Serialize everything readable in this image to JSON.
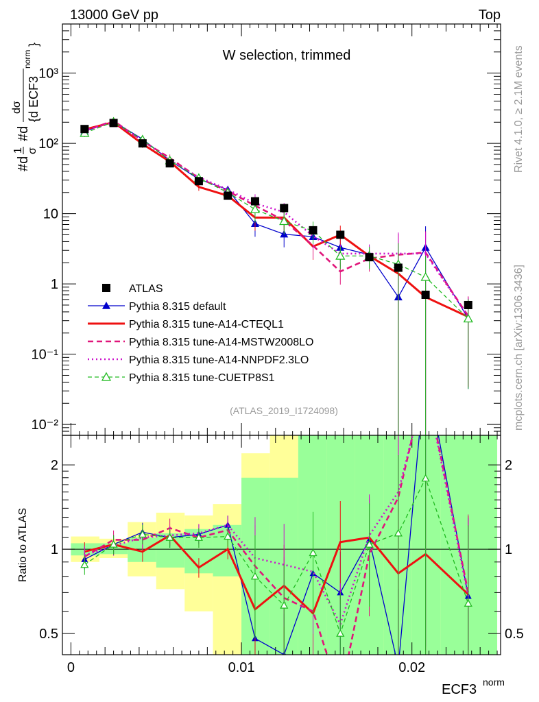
{
  "header": {
    "energy": "13000 GeV pp",
    "label": "Top"
  },
  "side_labels": {
    "rivet": "Rivet 4.1.0, ≥ 2.1M events",
    "site": "mcplots.cern.ch [arXiv:1306.3436]"
  },
  "chart_data": [
    {
      "type": "line",
      "panel": "main",
      "title": "W selection, trimmed",
      "annotation": "(ATLAS_2019_I1724098)",
      "ylabel": "#d1/σ #dσ/{d ECF3^norm}",
      "yscale": "log",
      "ylim": [
        0.007,
        5000
      ],
      "xlim": [
        -0.0005,
        0.0252
      ],
      "y_ticks": [
        {
          "value": 0.01,
          "label": "10⁻²"
        },
        {
          "value": 0.1,
          "label": "10⁻¹"
        },
        {
          "value": 1,
          "label": "1"
        },
        {
          "value": 10,
          "label": "10"
        },
        {
          "value": 100,
          "label": "10²"
        },
        {
          "value": 1000,
          "label": "10³"
        }
      ],
      "x": [
        0.0008,
        0.0025,
        0.0042,
        0.0058,
        0.0075,
        0.0092,
        0.0108,
        0.0125,
        0.0142,
        0.0158,
        0.0175,
        0.0192,
        0.0208,
        0.0233
      ],
      "bin_edges": [
        0,
        0.00167,
        0.00333,
        0.005,
        0.00667,
        0.00833,
        0.01,
        0.01167,
        0.01333,
        0.015,
        0.01667,
        0.01833,
        0.02,
        0.02167,
        0.025
      ],
      "series": [
        {
          "name": "ATLAS",
          "color": "#000000",
          "style": "square",
          "values": [
            160,
            195,
            100,
            52,
            29,
            18,
            15,
            12,
            5.8,
            5.0,
            2.4,
            1.7,
            0.7,
            0.5
          ]
        },
        {
          "name": "Pythia 8.315 default",
          "color": "#0000cc",
          "style": "solid-triangle",
          "values": [
            148,
            205,
            115,
            57,
            31,
            22,
            7.2,
            5.1,
            4.7,
            3.3,
            2.6,
            0.65,
            3.3,
            0.32
          ]
        },
        {
          "name": "Pythia 8.315 tune-A14-CTEQL1",
          "color": "#ee1111",
          "style": "solid-thick",
          "values": [
            158,
            200,
            98,
            55,
            24,
            18,
            8.8,
            8.8,
            3.4,
            5.0,
            2.5,
            1.4,
            0.65,
            0.34
          ]
        },
        {
          "name": "Pythia 8.315 tune-A14-MSTW2008LO",
          "color": "#e0157a",
          "style": "dashed",
          "values": [
            150,
            210,
            108,
            62,
            32,
            21,
            13,
            8.0,
            3.5,
            1.5,
            2.3,
            2.6,
            2.8,
            0.35
          ]
        },
        {
          "name": "Pythia 8.315 tune-A14-NNPDF2.3LO",
          "color": "#cc11cc",
          "style": "dotted",
          "values": [
            152,
            200,
            110,
            58,
            33,
            22,
            14,
            10.5,
            4.8,
            2.7,
            2.7,
            2.7,
            2.7,
            0.34
          ]
        },
        {
          "name": "Pythia 8.315 tune-CUETP8S1",
          "color": "#22bb22",
          "style": "dashed-open-triangle",
          "values": [
            140,
            202,
            113,
            57,
            32,
            20,
            11.5,
            7.8,
            5.7,
            2.5,
            2.5,
            1.9,
            1.25,
            0.32
          ]
        }
      ]
    },
    {
      "type": "line",
      "panel": "ratio",
      "ylabel": "Ratio to ATLAS",
      "xlabel": "ECF3^norm",
      "yscale": "log",
      "ylim": [
        0.42,
        2.55
      ],
      "y_ticks": [
        {
          "value": 0.5,
          "label": "0.5"
        },
        {
          "value": 1,
          "label": "1"
        },
        {
          "value": 2,
          "label": "2"
        }
      ],
      "x_ticks": [
        {
          "value": 0,
          "label": "0"
        },
        {
          "value": 0.01,
          "label": "0.01"
        },
        {
          "value": 0.02,
          "label": "0.02"
        }
      ],
      "band_stat": {
        "color": "#99ff99",
        "low": [
          0.95,
          0.96,
          0.9,
          0.86,
          0.82,
          0.8,
          0.3,
          0.3,
          0.3,
          0.3,
          0.3,
          0.3,
          0.3,
          0.3
        ],
        "high": [
          1.05,
          1.05,
          1.1,
          1.14,
          1.18,
          1.22,
          1.8,
          1.8,
          3.0,
          3.0,
          3.0,
          3.0,
          3.0,
          3.0
        ]
      },
      "band_syst": {
        "color": "#ffff99",
        "low": [
          0.9,
          0.93,
          0.8,
          0.72,
          0.6,
          0.42,
          0.3,
          0.3,
          0.3,
          0.3,
          0.3,
          0.3,
          0.3,
          0.3
        ],
        "high": [
          1.11,
          1.09,
          1.25,
          1.35,
          1.32,
          1.45,
          2.2,
          3.0,
          2.4,
          3.0,
          2.1,
          3.0,
          3.0,
          3.0
        ]
      },
      "series": [
        {
          "name": "Pythia 8.315 default",
          "color": "#0000cc",
          "style": "solid-triangle",
          "values": [
            0.92,
            1.04,
            1.15,
            1.1,
            1.13,
            1.22,
            0.48,
            0.42,
            0.82,
            0.7,
            1.08,
            0.38,
            4.5,
            0.68
          ]
        },
        {
          "name": "Pythia 8.315 tune-A14-CTEQL1",
          "color": "#ee1111",
          "style": "solid-thick",
          "values": [
            0.98,
            1.04,
            0.98,
            1.12,
            0.86,
            1.0,
            0.61,
            0.74,
            0.59,
            1.06,
            1.1,
            0.82,
            0.96,
            0.69
          ]
        },
        {
          "name": "Pythia 8.315 tune-A14-MSTW2008LO",
          "color": "#e0157a",
          "style": "dashed",
          "values": [
            0.94,
            1.08,
            1.08,
            1.19,
            1.1,
            1.17,
            0.87,
            0.67,
            0.6,
            0.3,
            0.96,
            1.53,
            4.0,
            0.7
          ]
        },
        {
          "name": "Pythia 8.315 tune-A14-NNPDF2.3LO",
          "color": "#cc11cc",
          "style": "dotted",
          "values": [
            0.95,
            1.03,
            1.1,
            1.12,
            1.14,
            1.22,
            0.93,
            0.88,
            0.83,
            0.54,
            1.12,
            1.6,
            3.9,
            0.68
          ]
        },
        {
          "name": "Pythia 8.315 tune-CUETP8S1",
          "color": "#22bb22",
          "style": "dashed-open-triangle",
          "values": [
            0.88,
            1.04,
            1.13,
            1.1,
            1.1,
            1.11,
            0.8,
            0.63,
            0.97,
            0.5,
            1.04,
            1.14,
            1.79,
            0.64
          ]
        }
      ]
    }
  ]
}
